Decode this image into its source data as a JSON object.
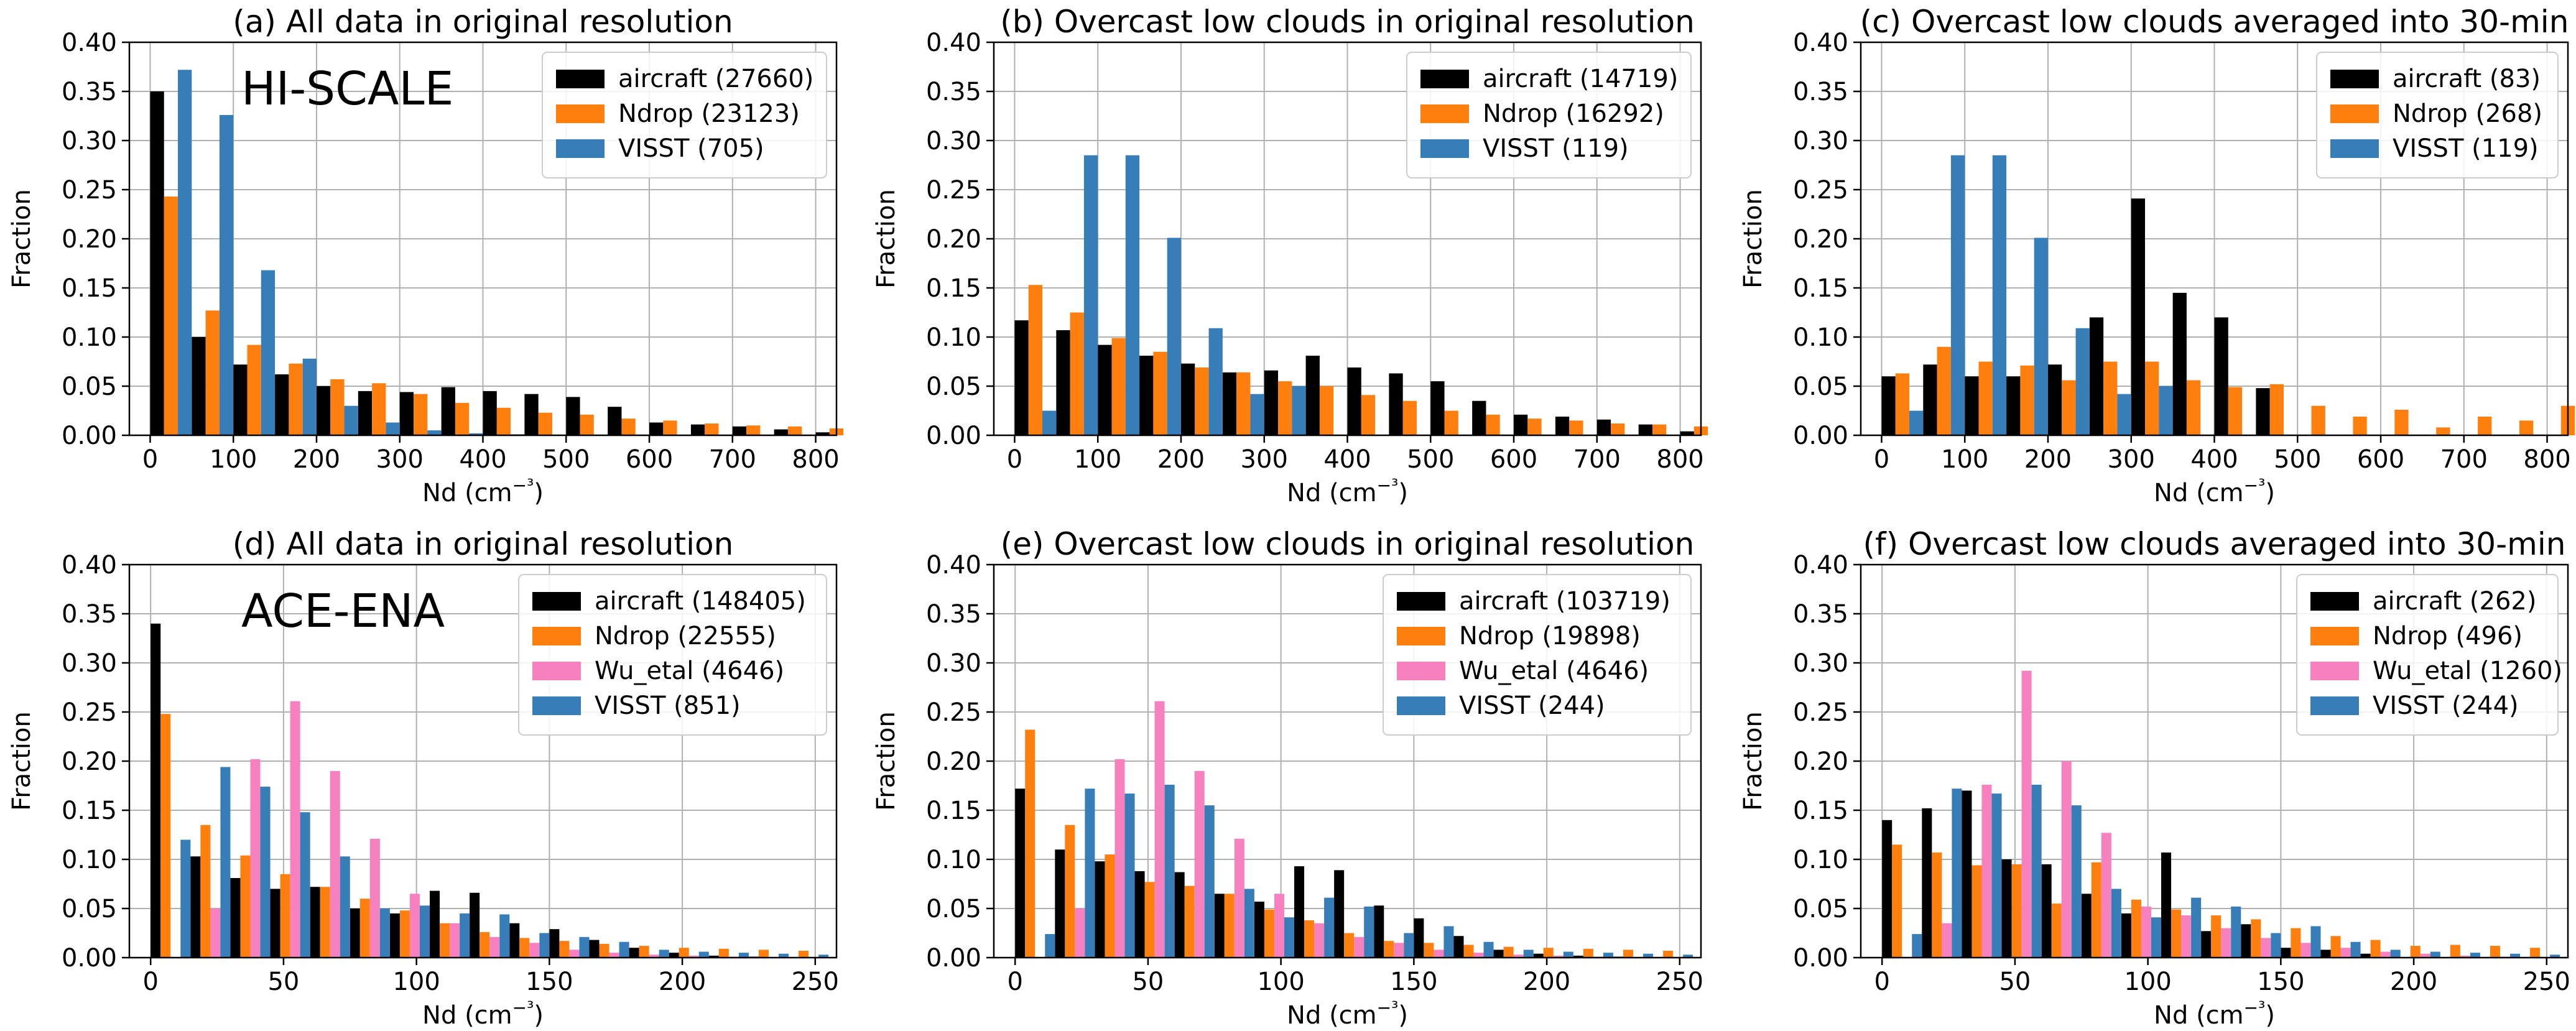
{
  "colors": {
    "aircraft": "#000000",
    "Ndrop": "#ff7f0e",
    "Wu_etal": "#f781bf",
    "VISST": "#377eb8"
  },
  "chart_data": [
    {
      "type": "bar",
      "title": "(a) All data in original resolution",
      "annotation": "HI-SCALE",
      "xlabel": "Nd (cm⁻³)",
      "ylabel": "Fraction",
      "xlim": [
        -25,
        825
      ],
      "ylim": [
        0,
        0.4
      ],
      "xticks": [
        0,
        100,
        200,
        300,
        400,
        500,
        600,
        700,
        800
      ],
      "yticks": [
        0,
        0.05,
        0.1,
        0.15,
        0.2,
        0.25,
        0.3,
        0.35,
        0.4
      ],
      "grid": true,
      "legend_position": "top-right",
      "bin_start": 0,
      "bin_width": 50,
      "series": [
        {
          "key": "aircraft",
          "name": "aircraft (27660)",
          "values": [
            0.35,
            0.1,
            0.072,
            0.062,
            0.05,
            0.045,
            0.044,
            0.049,
            0.045,
            0.042,
            0.039,
            0.029,
            0.013,
            0.011,
            0.009,
            0.006,
            0.003
          ]
        },
        {
          "key": "Ndrop",
          "name": "Ndrop (23123)",
          "values": [
            0.243,
            0.127,
            0.092,
            0.073,
            0.057,
            0.053,
            0.042,
            0.033,
            0.028,
            0.023,
            0.021,
            0.017,
            0.015,
            0.012,
            0.01,
            0.009,
            0.007
          ]
        },
        {
          "key": "VISST",
          "name": "VISST (705)",
          "values": [
            0.372,
            0.326,
            0.168,
            0.078,
            0.03,
            0.013,
            0.005,
            0.002,
            0.001,
            0,
            0,
            0,
            0,
            0,
            0,
            0,
            0
          ]
        }
      ]
    },
    {
      "type": "bar",
      "title": "(b) Overcast low clouds in original resolution",
      "xlabel": "Nd (cm⁻³)",
      "ylabel": "Fraction",
      "xlim": [
        -25,
        825
      ],
      "ylim": [
        0,
        0.4
      ],
      "xticks": [
        0,
        100,
        200,
        300,
        400,
        500,
        600,
        700,
        800
      ],
      "yticks": [
        0,
        0.05,
        0.1,
        0.15,
        0.2,
        0.25,
        0.3,
        0.35,
        0.4
      ],
      "grid": true,
      "legend_position": "top-right",
      "bin_start": 0,
      "bin_width": 50,
      "series": [
        {
          "key": "aircraft",
          "name": "aircraft (14719)",
          "values": [
            0.117,
            0.107,
            0.092,
            0.081,
            0.073,
            0.064,
            0.066,
            0.081,
            0.069,
            0.063,
            0.055,
            0.035,
            0.021,
            0.019,
            0.016,
            0.011,
            0.004
          ]
        },
        {
          "key": "Ndrop",
          "name": "Ndrop (16292)",
          "values": [
            0.153,
            0.125,
            0.099,
            0.085,
            0.069,
            0.064,
            0.055,
            0.05,
            0.041,
            0.035,
            0.025,
            0.021,
            0.017,
            0.015,
            0.012,
            0.011,
            0.009
          ]
        },
        {
          "key": "VISST",
          "name": "VISST (119)",
          "values": [
            0.025,
            0.285,
            0.285,
            0.201,
            0.109,
            0.042,
            0.05,
            0,
            0,
            0,
            0,
            0,
            0,
            0,
            0,
            0,
            0
          ]
        }
      ]
    },
    {
      "type": "bar",
      "title": "(c) Overcast low clouds averaged into 30-min",
      "xlabel": "Nd (cm⁻³)",
      "ylabel": "Fraction",
      "xlim": [
        -25,
        825
      ],
      "ylim": [
        0,
        0.4
      ],
      "xticks": [
        0,
        100,
        200,
        300,
        400,
        500,
        600,
        700,
        800
      ],
      "yticks": [
        0,
        0.05,
        0.1,
        0.15,
        0.2,
        0.25,
        0.3,
        0.35,
        0.4
      ],
      "grid": true,
      "legend_position": "top-right",
      "bin_start": 0,
      "bin_width": 50,
      "series": [
        {
          "key": "aircraft",
          "name": "aircraft (83)",
          "values": [
            0.06,
            0.072,
            0.06,
            0.06,
            0.072,
            0.12,
            0.241,
            0.145,
            0.12,
            0.048,
            0,
            0,
            0,
            0,
            0,
            0,
            0
          ]
        },
        {
          "key": "Ndrop",
          "name": "Ndrop (268)",
          "values": [
            0.063,
            0.09,
            0.075,
            0.071,
            0.056,
            0.075,
            0.075,
            0.056,
            0.049,
            0.052,
            0.03,
            0.019,
            0.026,
            0.008,
            0.019,
            0.015,
            0.03
          ]
        },
        {
          "key": "VISST",
          "name": "VISST (119)",
          "values": [
            0.025,
            0.285,
            0.285,
            0.201,
            0.109,
            0.042,
            0.05,
            0,
            0,
            0,
            0,
            0,
            0,
            0,
            0,
            0,
            0
          ]
        }
      ]
    },
    {
      "type": "bar",
      "title": "(d) All data in original resolution",
      "annotation": "ACE-ENA",
      "xlabel": "Nd (cm⁻³)",
      "ylabel": "Fraction",
      "xlim": [
        -8,
        258
      ],
      "ylim": [
        0,
        0.4
      ],
      "xticks": [
        0,
        50,
        100,
        150,
        200,
        250
      ],
      "yticks": [
        0,
        0.05,
        0.1,
        0.15,
        0.2,
        0.25,
        0.3,
        0.35,
        0.4
      ],
      "grid": true,
      "legend_position": "top-right",
      "bin_start": 0,
      "bin_width": 15,
      "series": [
        {
          "key": "aircraft",
          "name": "aircraft (148405)",
          "values": [
            0.34,
            0.103,
            0.081,
            0.07,
            0.072,
            0.05,
            0.045,
            0.068,
            0.066,
            0.035,
            0.029,
            0.018,
            0.01,
            0.005,
            0.002,
            0.001,
            0
          ]
        },
        {
          "key": "Ndrop",
          "name": "Ndrop (22555)",
          "values": [
            0.248,
            0.135,
            0.104,
            0.085,
            0.072,
            0.06,
            0.048,
            0.035,
            0.026,
            0.02,
            0.017,
            0.014,
            0.012,
            0.01,
            0.009,
            0.008,
            0.007
          ]
        },
        {
          "key": "Wu_etal",
          "name": "Wu_etal (4646)",
          "values": [
            0,
            0.05,
            0.202,
            0.261,
            0.19,
            0.121,
            0.065,
            0.035,
            0.021,
            0.015,
            0.008,
            0.005,
            0.003,
            0.002,
            0.001,
            0,
            0
          ]
        },
        {
          "key": "VISST",
          "name": "VISST (851)",
          "values": [
            0.12,
            0.194,
            0.174,
            0.148,
            0.103,
            0.05,
            0.053,
            0.045,
            0.044,
            0.025,
            0.021,
            0.016,
            0.008,
            0.006,
            0.005,
            0.004,
            0.003
          ]
        }
      ]
    },
    {
      "type": "bar",
      "title": "(e) Overcast low clouds in original resolution",
      "xlabel": "Nd (cm⁻³)",
      "ylabel": "Fraction",
      "xlim": [
        -8,
        258
      ],
      "ylim": [
        0,
        0.4
      ],
      "xticks": [
        0,
        50,
        100,
        150,
        200,
        250
      ],
      "yticks": [
        0,
        0.05,
        0.1,
        0.15,
        0.2,
        0.25,
        0.3,
        0.35,
        0.4
      ],
      "grid": true,
      "legend_position": "top-right",
      "bin_start": 0,
      "bin_width": 15,
      "series": [
        {
          "key": "aircraft",
          "name": "aircraft (103719)",
          "values": [
            0.172,
            0.11,
            0.098,
            0.088,
            0.087,
            0.065,
            0.057,
            0.093,
            0.089,
            0.053,
            0.04,
            0.022,
            0.008,
            0.004,
            0.002,
            0.001,
            0
          ]
        },
        {
          "key": "Ndrop",
          "name": "Ndrop (19898)",
          "values": [
            0.232,
            0.135,
            0.105,
            0.077,
            0.073,
            0.065,
            0.049,
            0.038,
            0.025,
            0.017,
            0.015,
            0.013,
            0.011,
            0.01,
            0.009,
            0.008,
            0.007
          ]
        },
        {
          "key": "Wu_etal",
          "name": "Wu_etal (4646)",
          "values": [
            0,
            0.05,
            0.202,
            0.261,
            0.19,
            0.121,
            0.065,
            0.035,
            0.021,
            0.015,
            0.008,
            0.005,
            0.003,
            0.002,
            0.001,
            0,
            0
          ]
        },
        {
          "key": "VISST",
          "name": "VISST (244)",
          "values": [
            0.024,
            0.172,
            0.167,
            0.176,
            0.155,
            0.07,
            0.041,
            0.061,
            0.052,
            0.025,
            0.032,
            0.016,
            0.008,
            0.006,
            0.005,
            0.004,
            0.003
          ]
        }
      ]
    },
    {
      "type": "bar",
      "title": "(f) Overcast low clouds averaged into 30-min",
      "xlabel": "Nd (cm⁻³)",
      "ylabel": "Fraction",
      "xlim": [
        -8,
        258
      ],
      "ylim": [
        0,
        0.4
      ],
      "xticks": [
        0,
        50,
        100,
        150,
        200,
        250
      ],
      "yticks": [
        0,
        0.05,
        0.1,
        0.15,
        0.2,
        0.25,
        0.3,
        0.35,
        0.4
      ],
      "grid": true,
      "legend_position": "top-right",
      "bin_start": 0,
      "bin_width": 15,
      "series": [
        {
          "key": "aircraft",
          "name": "aircraft (262)",
          "values": [
            0.14,
            0.152,
            0.17,
            0.1,
            0.095,
            0.065,
            0.045,
            0.107,
            0.027,
            0.034,
            0.01,
            0.008,
            0.004,
            0,
            0,
            0,
            0
          ]
        },
        {
          "key": "Ndrop",
          "name": "Ndrop (496)",
          "values": [
            0.115,
            0.107,
            0.094,
            0.095,
            0.055,
            0.097,
            0.059,
            0.049,
            0.043,
            0.039,
            0.03,
            0.022,
            0.018,
            0.012,
            0.013,
            0.012,
            0.01
          ]
        },
        {
          "key": "Wu_etal",
          "name": "Wu_etal (1260)",
          "values": [
            0,
            0.035,
            0.176,
            0.292,
            0.2,
            0.127,
            0.052,
            0.043,
            0.03,
            0.02,
            0.015,
            0.01,
            0.006,
            0.004,
            0.002,
            0.001,
            0
          ]
        },
        {
          "key": "VISST",
          "name": "VISST (244)",
          "values": [
            0.024,
            0.172,
            0.167,
            0.176,
            0.155,
            0.07,
            0.041,
            0.061,
            0.052,
            0.025,
            0.032,
            0.016,
            0.008,
            0.006,
            0.005,
            0.004,
            0.003
          ]
        }
      ]
    }
  ]
}
